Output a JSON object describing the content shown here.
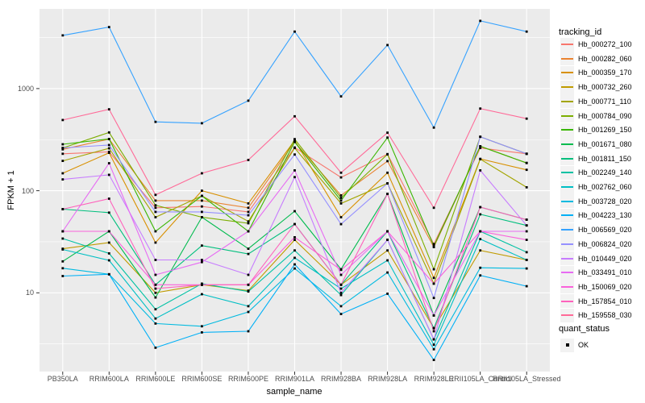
{
  "chart_data": {
    "type": "line",
    "xlabel": "sample_name",
    "ylabel": "FPKM + 1",
    "yscale": "log10",
    "ylim": [
      1.7,
      6300
    ],
    "y_major_ticks": [
      1000,
      100,
      10
    ],
    "y_minor_gridlines": [
      3162,
      316.2,
      31.62,
      3.162
    ],
    "grid": "on",
    "legend_position": "right",
    "legend_titles": {
      "series": "tracking_id",
      "points": "quant_status"
    },
    "quant_label": "OK",
    "panel_bg": "#EBEBEB",
    "grid_color": "#FFFFFF",
    "tick_color": "#333333",
    "point_color": "#000000",
    "x_categories": [
      "PB350LA",
      "RRIM600LA",
      "RRIM600LE",
      "RRIM600SE",
      "RRIM600PE",
      "RRIM901LA",
      "RRIM928BA",
      "RRIM928LA",
      "RRIM928LE",
      "RRII105LA_Control",
      "RRII105LA_Stressed"
    ],
    "series": [
      {
        "name": "Hb_000272_100",
        "color": "#F8766D",
        "values": [
          230,
          240,
          68,
          70,
          62,
          265,
          135,
          228,
          30,
          262,
          230
        ]
      },
      {
        "name": "Hb_000282_060",
        "color": "#EA8331",
        "values": [
          254,
          320,
          80,
          80,
          68,
          300,
          90,
          195,
          28,
          272,
          187
        ]
      },
      {
        "name": "Hb_000359_170",
        "color": "#D89000",
        "values": [
          148,
          235,
          31,
          100,
          75,
          310,
          55,
          150,
          14,
          205,
          160
        ]
      },
      {
        "name": "Hb_000732_260",
        "color": "#C09B00",
        "values": [
          27,
          31,
          10,
          12,
          10.5,
          33,
          12,
          26,
          4.5,
          26,
          21
        ]
      },
      {
        "name": "Hb_000771_110",
        "color": "#A3A500",
        "values": [
          196,
          260,
          55,
          89,
          50,
          262,
          75,
          118,
          12.3,
          204,
          108
        ]
      },
      {
        "name": "Hb_000784_090",
        "color": "#7CAE00",
        "values": [
          262,
          372,
          72,
          55,
          48,
          320,
          85,
          227,
          17,
          337,
          230
        ]
      },
      {
        "name": "Hb_001269_150",
        "color": "#39B600",
        "values": [
          285,
          321,
          40,
          89,
          40,
          300,
          80,
          331,
          28.7,
          272,
          187
        ]
      },
      {
        "name": "Hb_001671_080",
        "color": "#00BB4E",
        "values": [
          20.3,
          40,
          9,
          55,
          27,
          63,
          17,
          93,
          6,
          69,
          52
        ]
      },
      {
        "name": "Hb_001811_150",
        "color": "#00BF7D",
        "values": [
          66,
          61,
          12,
          29,
          24,
          47,
          12,
          40,
          4.5,
          58.7,
          45.7
        ]
      },
      {
        "name": "Hb_002249_140",
        "color": "#00C1A3",
        "values": [
          34,
          24.3,
          6.9,
          12.3,
          10.3,
          26,
          9.5,
          33,
          3.5,
          40,
          25
        ]
      },
      {
        "name": "Hb_002762_060",
        "color": "#00BFC4",
        "values": [
          26.6,
          20.8,
          5.6,
          9.7,
          7.4,
          22,
          11,
          20.8,
          3.1,
          33.6,
          21
        ]
      },
      {
        "name": "Hb_003728_020",
        "color": "#00BAE0",
        "values": [
          17.4,
          15.2,
          5,
          4.7,
          6.5,
          17.3,
          7.4,
          15.8,
          2.8,
          17.6,
          17.3
        ]
      },
      {
        "name": "Hb_004223_130",
        "color": "#00B0F6",
        "values": [
          14.6,
          15.2,
          2.9,
          4.1,
          4.2,
          19,
          6.2,
          9.8,
          2.2,
          14.8,
          11.6
        ]
      },
      {
        "name": "Hb_006569_020",
        "color": "#35A2FF",
        "values": [
          3320,
          4000,
          472,
          458,
          762,
          3615,
          838,
          2670,
          415,
          4600,
          3615
        ]
      },
      {
        "name": "Hb_006824_020",
        "color": "#9590FF",
        "values": [
          262,
          280,
          62,
          62,
          57.5,
          226,
          47,
          118,
          8.9,
          337,
          230
        ]
      },
      {
        "name": "Hb_010449_020",
        "color": "#C77CFF",
        "values": [
          129,
          143,
          21,
          21,
          15,
          136,
          10,
          33,
          3.5,
          158,
          45.7
        ]
      },
      {
        "name": "Hb_033491_010",
        "color": "#E76BF3",
        "values": [
          40,
          186,
          15,
          20,
          40,
          158,
          15,
          40,
          6,
          40,
          40
        ]
      },
      {
        "name": "Hb_150069_020",
        "color": "#FA62DB",
        "values": [
          40,
          40,
          12,
          12,
          12,
          35,
          16.8,
          40,
          12.3,
          40,
          33
        ]
      },
      {
        "name": "Hb_157854_010",
        "color": "#FF62BC",
        "values": [
          66,
          83.5,
          11,
          12,
          12,
          47,
          12,
          93,
          4.2,
          69,
          52
        ]
      },
      {
        "name": "Hb_159558_030",
        "color": "#FF6A98",
        "values": [
          492,
          627,
          91,
          148,
          200,
          535,
          150,
          370,
          68,
          637,
          508
        ]
      }
    ]
  }
}
